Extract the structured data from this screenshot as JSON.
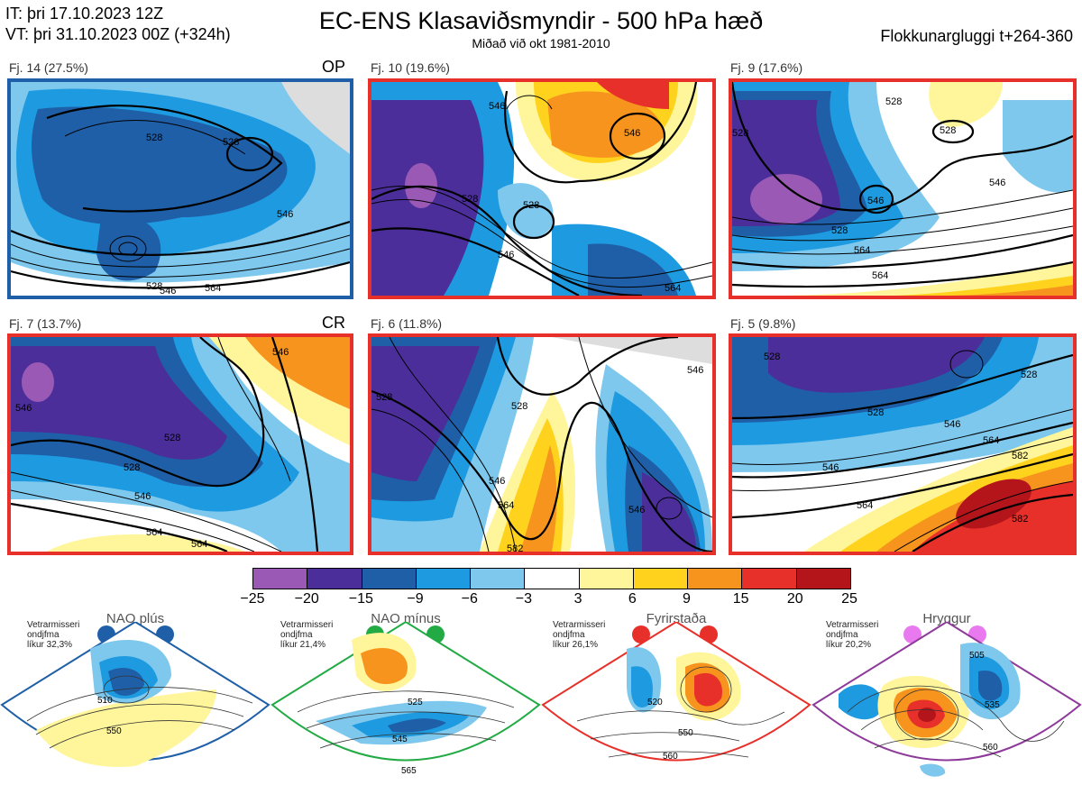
{
  "header": {
    "it_line": "IT: þri 17.10.2023 12Z",
    "vt_line": "VT: þri 31.10.2023 00Z  (+324h)",
    "title": "EC-ENS Klasaviðsmyndir - 500 hPa hæð",
    "subtitle": "Miðað við okt 1981-2010",
    "window": "Flokkunargluggi t+264-360"
  },
  "panels": [
    {
      "label": "Fj. 14 (27.5%)",
      "tag": "OP",
      "border": "#1f5fa8",
      "contours": [
        "528",
        "528",
        "546",
        "528",
        "546",
        "564"
      ]
    },
    {
      "label": "Fj. 10 (19.6%)",
      "tag": "",
      "border": "#e8302a",
      "contours": [
        "546",
        "546",
        "528",
        "528",
        "546",
        "564"
      ]
    },
    {
      "label": "Fj. 9 (17.6%)",
      "tag": "",
      "border": "#e8302a",
      "contours": [
        "528",
        "528",
        "528",
        "528",
        "546",
        "546",
        "564",
        "564"
      ]
    },
    {
      "label": "Fj. 7 (13.7%)",
      "tag": "CR",
      "border": "#e8302a",
      "contours": [
        "546",
        "564",
        "528",
        "528",
        "546",
        "564",
        "546"
      ]
    },
    {
      "label": "Fj. 6 (11.8%)",
      "tag": "",
      "border": "#e8302a",
      "contours": [
        "528",
        "546",
        "528",
        "546",
        "564",
        "582",
        "546"
      ]
    },
    {
      "label": "Fj. 5 (9.8%)",
      "tag": "",
      "border": "#e8302a",
      "contours": [
        "528",
        "528",
        "528",
        "546",
        "564",
        "582",
        "546",
        "564",
        "582"
      ]
    }
  ],
  "colorbar": {
    "ticks": [
      "−25",
      "−20",
      "−15",
      "−9",
      "−6",
      "−3",
      "3",
      "6",
      "9",
      "15",
      "20",
      "25"
    ],
    "colors": [
      "#9b59b6",
      "#4b2e9a",
      "#1f5fa8",
      "#1e9be0",
      "#7ec8ee",
      "#ffffff",
      "#fff59a",
      "#ffd21e",
      "#f7941d",
      "#e8302a",
      "#b3151b"
    ]
  },
  "regimes": [
    {
      "name": "NAO plús",
      "note": "Vetrarmisseri\nondjfma\nlíkur 32,3%",
      "note_lines": [
        "Vetrarmisseri",
        "ondjfma",
        "líkur 32,3%"
      ],
      "color": "#1f5fa8",
      "contours": [
        "510",
        "550"
      ]
    },
    {
      "name": "NAO mínus",
      "note_lines": [
        "Vetrarmisseri",
        "ondjfma",
        "líkur 21,4%"
      ],
      "color": "#22aa44",
      "contours": [
        "525",
        "545",
        "565"
      ]
    },
    {
      "name": "Fyrirstaða",
      "note_lines": [
        "Vetrarmisseri",
        "ondjfma",
        "líkur 26,1%"
      ],
      "color": "#e8302a",
      "contours": [
        "520",
        "550",
        "560"
      ]
    },
    {
      "name": "Hryggur",
      "note_lines": [
        "Vetrarmisseri",
        "ondjfma",
        "líkur 20,2%"
      ],
      "color": "#8e3a9a",
      "contours": [
        "505",
        "535",
        "560"
      ]
    }
  ]
}
